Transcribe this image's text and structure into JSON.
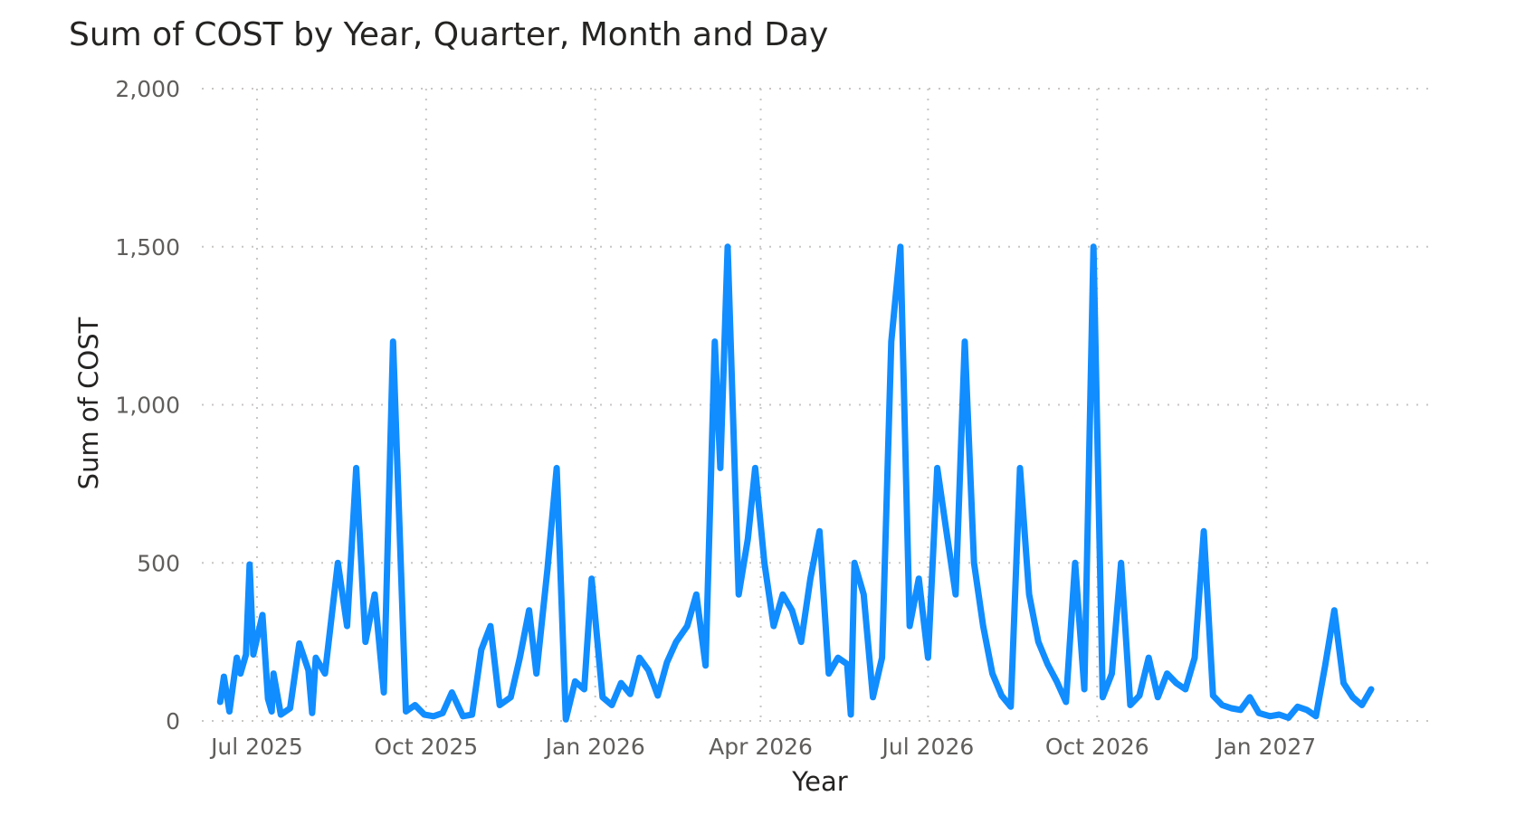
{
  "chart_data": {
    "type": "line",
    "title": "Sum of COST by Year, Quarter, Month and Day",
    "xlabel": "Year",
    "ylabel": "Sum of COST",
    "ylim": [
      0,
      2000
    ],
    "y_ticks": [
      0,
      500,
      1000,
      1500,
      2000
    ],
    "y_tick_labels": [
      "0",
      "500",
      "1,000",
      "1,500",
      "2,000"
    ],
    "xlim": [
      "2025-06-01",
      "2027-04-01"
    ],
    "x_ticks": [
      {
        "date": "2025-07-01",
        "label": "Jul 2025"
      },
      {
        "date": "2025-10-01",
        "label": "Oct 2025"
      },
      {
        "date": "2026-01-01",
        "label": "Jan 2026"
      },
      {
        "date": "2026-04-01",
        "label": "Apr 2026"
      },
      {
        "date": "2026-07-01",
        "label": "Jul 2026"
      },
      {
        "date": "2026-10-01",
        "label": "Oct 2026"
      },
      {
        "date": "2027-01-01",
        "label": "Jan 2027"
      }
    ],
    "grid": true,
    "line_color": "#118DFF",
    "series": [
      {
        "points": [
          [
            "2025-06-11",
            60
          ],
          [
            "2025-06-13",
            140
          ],
          [
            "2025-06-16",
            30
          ],
          [
            "2025-06-20",
            200
          ],
          [
            "2025-06-22",
            150
          ],
          [
            "2025-06-25",
            210
          ],
          [
            "2025-06-27",
            495
          ],
          [
            "2025-06-29",
            210
          ],
          [
            "2025-07-04",
            335
          ],
          [
            "2025-07-07",
            70
          ],
          [
            "2025-07-09",
            30
          ],
          [
            "2025-07-10",
            150
          ],
          [
            "2025-07-14",
            20
          ],
          [
            "2025-07-19",
            40
          ],
          [
            "2025-07-24",
            245
          ],
          [
            "2025-07-29",
            160
          ],
          [
            "2025-07-31",
            25
          ],
          [
            "2025-08-02",
            200
          ],
          [
            "2025-08-07",
            150
          ],
          [
            "2025-08-14",
            500
          ],
          [
            "2025-08-19",
            300
          ],
          [
            "2025-08-24",
            800
          ],
          [
            "2025-08-29",
            250
          ],
          [
            "2025-09-03",
            400
          ],
          [
            "2025-09-08",
            90
          ],
          [
            "2025-09-13",
            1200
          ],
          [
            "2025-09-20",
            30
          ],
          [
            "2025-09-25",
            50
          ],
          [
            "2025-09-30",
            20
          ],
          [
            "2025-10-05",
            15
          ],
          [
            "2025-10-10",
            25
          ],
          [
            "2025-10-15",
            90
          ],
          [
            "2025-10-21",
            15
          ],
          [
            "2025-10-26",
            20
          ],
          [
            "2025-10-31",
            225
          ],
          [
            "2025-11-05",
            300
          ],
          [
            "2025-11-10",
            50
          ],
          [
            "2025-11-16",
            75
          ],
          [
            "2025-11-21",
            200
          ],
          [
            "2025-11-26",
            350
          ],
          [
            "2025-11-30",
            150
          ],
          [
            "2025-12-06",
            480
          ],
          [
            "2025-12-11",
            800
          ],
          [
            "2025-12-16",
            5
          ],
          [
            "2025-12-21",
            125
          ],
          [
            "2025-12-26",
            100
          ],
          [
            "2025-12-30",
            450
          ],
          [
            "2026-01-05",
            75
          ],
          [
            "2026-01-10",
            50
          ],
          [
            "2026-01-15",
            120
          ],
          [
            "2026-01-20",
            85
          ],
          [
            "2026-01-25",
            200
          ],
          [
            "2026-01-30",
            160
          ],
          [
            "2026-02-04",
            80
          ],
          [
            "2026-02-09",
            185
          ],
          [
            "2026-02-14",
            250
          ],
          [
            "2026-02-20",
            300
          ],
          [
            "2026-02-25",
            400
          ],
          [
            "2026-03-02",
            175
          ],
          [
            "2026-03-07",
            1200
          ],
          [
            "2026-03-10",
            800
          ],
          [
            "2026-03-14",
            1500
          ],
          [
            "2026-03-20",
            400
          ],
          [
            "2026-03-25",
            575
          ],
          [
            "2026-03-29",
            800
          ],
          [
            "2026-04-03",
            500
          ],
          [
            "2026-04-08",
            300
          ],
          [
            "2026-04-13",
            400
          ],
          [
            "2026-04-18",
            350
          ],
          [
            "2026-04-23",
            250
          ],
          [
            "2026-04-28",
            450
          ],
          [
            "2026-05-03",
            600
          ],
          [
            "2026-05-08",
            150
          ],
          [
            "2026-05-13",
            200
          ],
          [
            "2026-05-18",
            180
          ],
          [
            "2026-05-20",
            20
          ],
          [
            "2026-05-22",
            500
          ],
          [
            "2026-05-27",
            400
          ],
          [
            "2026-06-01",
            75
          ],
          [
            "2026-06-06",
            200
          ],
          [
            "2026-06-11",
            1200
          ],
          [
            "2026-06-16",
            1500
          ],
          [
            "2026-06-21",
            300
          ],
          [
            "2026-06-26",
            450
          ],
          [
            "2026-07-01",
            200
          ],
          [
            "2026-07-06",
            800
          ],
          [
            "2026-07-11",
            600
          ],
          [
            "2026-07-16",
            400
          ],
          [
            "2026-07-21",
            1200
          ],
          [
            "2026-07-26",
            500
          ],
          [
            "2026-07-31",
            300
          ],
          [
            "2026-08-05",
            150
          ],
          [
            "2026-08-10",
            80
          ],
          [
            "2026-08-15",
            45
          ],
          [
            "2026-08-20",
            800
          ],
          [
            "2026-08-25",
            400
          ],
          [
            "2026-08-30",
            250
          ],
          [
            "2026-09-04",
            180
          ],
          [
            "2026-09-09",
            125
          ],
          [
            "2026-09-14",
            60
          ],
          [
            "2026-09-19",
            500
          ],
          [
            "2026-09-24",
            100
          ],
          [
            "2026-09-29",
            1500
          ],
          [
            "2026-10-04",
            75
          ],
          [
            "2026-10-09",
            150
          ],
          [
            "2026-10-14",
            500
          ],
          [
            "2026-10-19",
            50
          ],
          [
            "2026-10-24",
            80
          ],
          [
            "2026-10-29",
            200
          ],
          [
            "2026-11-03",
            75
          ],
          [
            "2026-11-08",
            150
          ],
          [
            "2026-11-13",
            120
          ],
          [
            "2026-11-18",
            100
          ],
          [
            "2026-11-23",
            200
          ],
          [
            "2026-11-28",
            600
          ],
          [
            "2026-12-03",
            80
          ],
          [
            "2026-12-08",
            50
          ],
          [
            "2026-12-13",
            40
          ],
          [
            "2026-12-18",
            35
          ],
          [
            "2026-12-23",
            75
          ],
          [
            "2026-12-28",
            25
          ],
          [
            "2027-01-03",
            15
          ],
          [
            "2027-01-08",
            20
          ],
          [
            "2027-01-13",
            10
          ],
          [
            "2027-01-18",
            45
          ],
          [
            "2027-01-23",
            35
          ],
          [
            "2027-01-28",
            15
          ],
          [
            "2027-02-02",
            175
          ],
          [
            "2027-02-07",
            350
          ],
          [
            "2027-02-12",
            120
          ],
          [
            "2027-02-17",
            75
          ],
          [
            "2027-02-22",
            50
          ],
          [
            "2027-02-27",
            100
          ]
        ]
      }
    ]
  }
}
